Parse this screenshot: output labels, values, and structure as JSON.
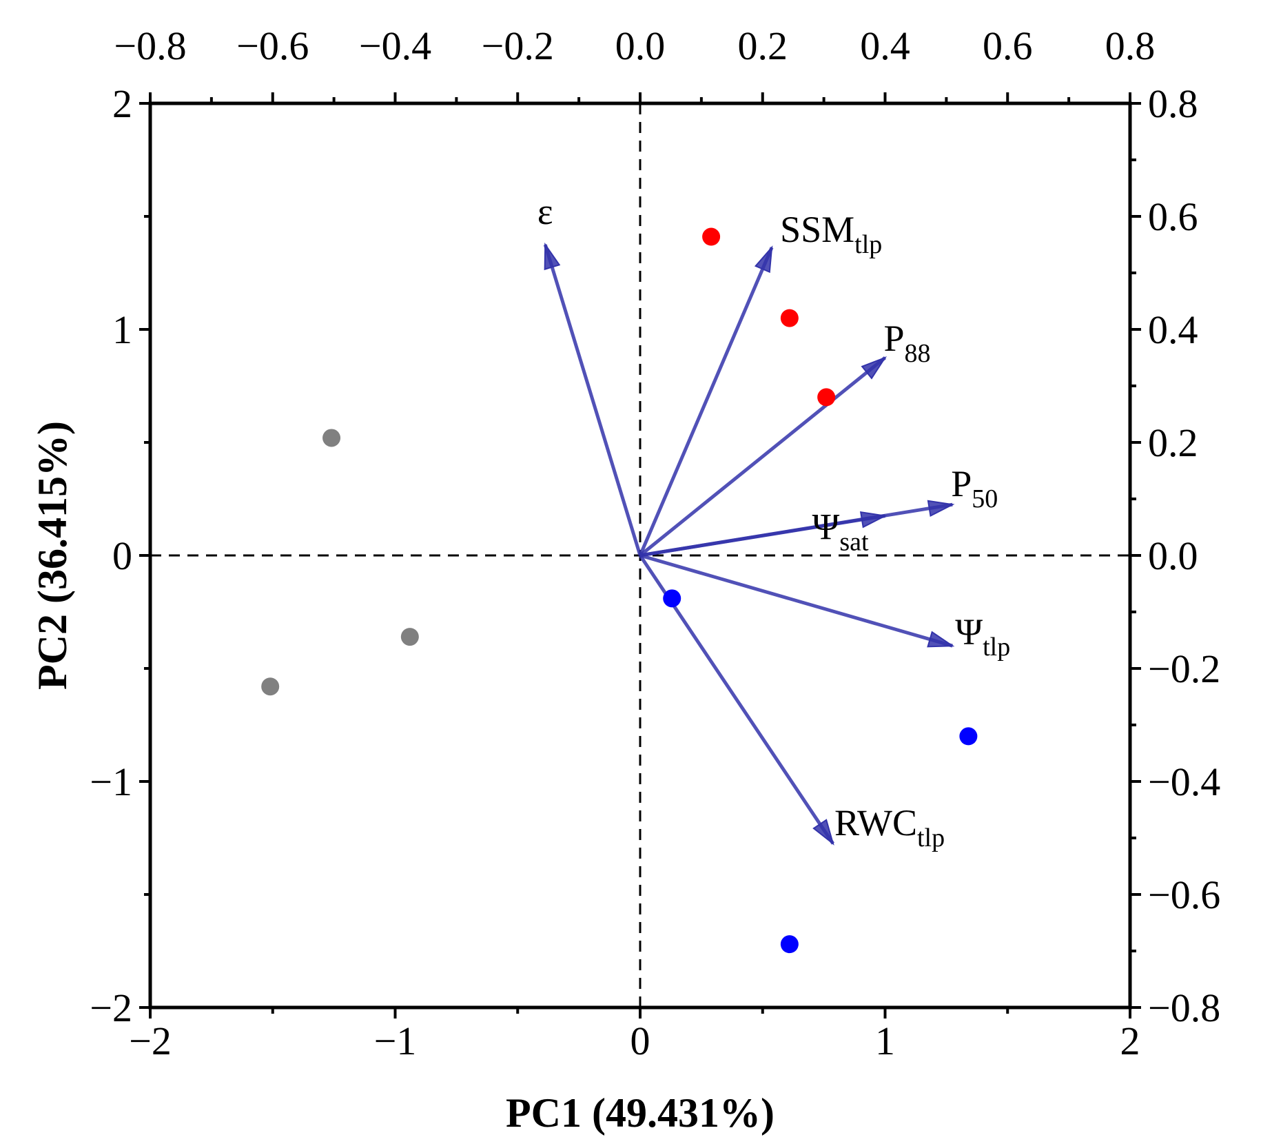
{
  "chart_data": {
    "type": "biplot",
    "xlabel": "PC1 (49.431%)",
    "ylabel": "PC2 (36.415%)",
    "xlim": [
      -2,
      2
    ],
    "ylim": [
      -2,
      2
    ],
    "xticks": [
      -2,
      -1,
      0,
      1,
      2
    ],
    "yticks": [
      -2,
      -1,
      0,
      1,
      2
    ],
    "x_tick_labels": [
      "−2",
      "−1",
      "0",
      "1",
      "2"
    ],
    "y_tick_labels": [
      "−2",
      "−1",
      "0",
      "1",
      "2"
    ],
    "loading_xlim": [
      -0.8,
      0.8
    ],
    "loading_ylim": [
      -0.8,
      0.8
    ],
    "loading_ticks": [
      -0.8,
      -0.6,
      -0.4,
      -0.2,
      0.0,
      0.2,
      0.4,
      0.6,
      0.8
    ],
    "top_tick_labels": [
      "−0.8",
      "−0.6",
      "−0.4",
      "−0.2",
      "0.0",
      "0.2",
      "0.4",
      "0.6",
      "0.8"
    ],
    "right_tick_labels": [
      "−0.8",
      "−0.6",
      "−0.4",
      "−0.2",
      "0.0",
      "0.2",
      "0.4",
      "0.6",
      "0.8"
    ],
    "reference_lines": {
      "x": 0,
      "y": 0,
      "style": "dashed"
    },
    "scores": [
      {
        "x": 0.29,
        "y": 1.41,
        "color": "#ff0000"
      },
      {
        "x": 0.61,
        "y": 1.05,
        "color": "#ff0000"
      },
      {
        "x": 0.76,
        "y": 0.7,
        "color": "#ff0000"
      },
      {
        "x": -1.26,
        "y": 0.52,
        "color": "#808080"
      },
      {
        "x": -0.94,
        "y": -0.36,
        "color": "#808080"
      },
      {
        "x": -1.51,
        "y": -0.58,
        "color": "#808080"
      },
      {
        "x": 0.13,
        "y": -0.19,
        "color": "#0000ff"
      },
      {
        "x": 1.34,
        "y": -0.8,
        "color": "#0000ff"
      },
      {
        "x": 0.61,
        "y": -1.72,
        "color": "#0000ff"
      }
    ],
    "loadings": [
      {
        "label": "ε",
        "sub": "",
        "x": -0.155,
        "y": 0.55
      },
      {
        "label": "SSM",
        "sub": "tlp",
        "x": 0.215,
        "y": 0.545
      },
      {
        "label": "P",
        "sub": "88",
        "x": 0.4,
        "y": 0.35
      },
      {
        "label": "Ψ",
        "sub": "sat",
        "x": 0.4,
        "y": 0.07
      },
      {
        "label": "P",
        "sub": "50",
        "x": 0.51,
        "y": 0.09
      },
      {
        "label": "Ψ",
        "sub": "tlp",
        "x": 0.51,
        "y": -0.16
      },
      {
        "label": "RWC",
        "sub": "tlp",
        "x": 0.315,
        "y": -0.51
      }
    ],
    "vector_color": "#3333aa"
  }
}
